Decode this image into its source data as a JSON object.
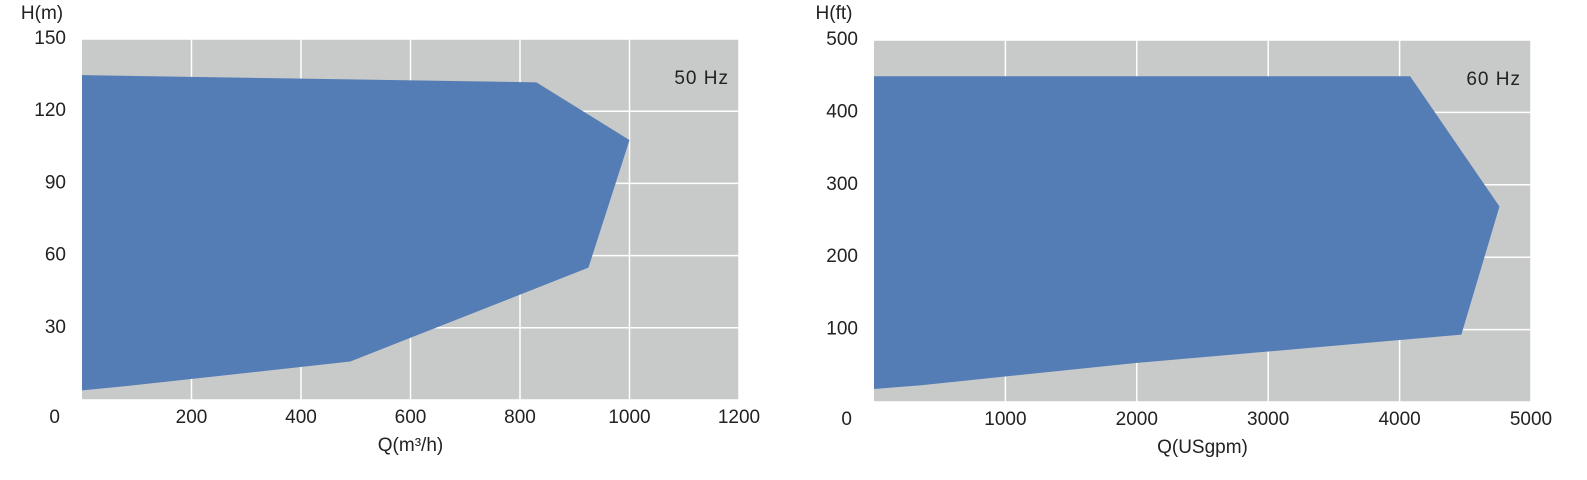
{
  "chart_data": [
    {
      "type": "area",
      "y_label": "H(m)",
      "x_label": "Q(m³/h)",
      "annotation": "50 Hz",
      "x": [
        0,
        830,
        1000,
        925,
        490,
        90,
        0
      ],
      "values": [
        135,
        132,
        108,
        55,
        16,
        6,
        4
      ],
      "color": "#537db4",
      "background": "#c8c9c9",
      "grid": true,
      "xlim": [
        0,
        1200
      ],
      "xticks": [
        200,
        400,
        600,
        800,
        1000,
        1200
      ],
      "ylim": [
        0,
        150
      ],
      "yticks": [
        0,
        30,
        60,
        90,
        120,
        150
      ]
    },
    {
      "type": "area",
      "y_label": "H(ft)",
      "x_label": "Q(USgpm)",
      "annotation": "60 Hz",
      "x": [
        0,
        4080,
        4760,
        4470,
        2000,
        350,
        0
      ],
      "values": [
        450,
        450,
        270,
        93,
        54,
        23,
        18
      ],
      "color": "#537db4",
      "background": "#c8c9c9",
      "grid": true,
      "xlim": [
        0,
        5000
      ],
      "xticks": [
        1000,
        2000,
        3000,
        4000,
        5000
      ],
      "ylim": [
        0,
        500
      ],
      "yticks": [
        0,
        100,
        200,
        300,
        400,
        500
      ]
    }
  ]
}
